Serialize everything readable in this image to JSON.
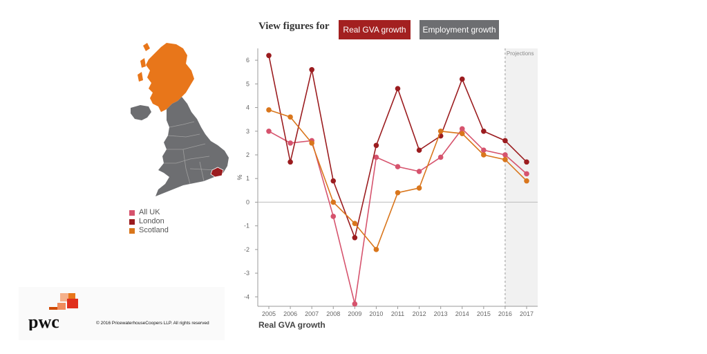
{
  "header": {
    "view_label": "View figures for",
    "tabs": [
      {
        "label": "Real GVA growth",
        "color": "#a32020",
        "selected": true
      },
      {
        "label": "Employment growth",
        "color": "#6d6e71",
        "selected": false
      }
    ]
  },
  "legend": [
    {
      "label": "All UK",
      "color": "#d6536d"
    },
    {
      "label": "London",
      "color": "#9b1c1f"
    },
    {
      "label": "Scotland",
      "color": "#d9761c"
    }
  ],
  "map": {
    "highlight_colors": {
      "scotland": "#e8761a",
      "london": "#9b1c1f",
      "rest": "#6d6e71"
    }
  },
  "footer": {
    "logo_text": "pwc",
    "copyright": "© 2016 PricewaterhouseCoopers LLP. All rights reserved"
  },
  "chart_data": {
    "type": "line",
    "caption": "Real GVA growth",
    "ylabel": "%",
    "projection_label": "Projections",
    "projection_from": 2016,
    "x": [
      2005,
      2006,
      2007,
      2008,
      2009,
      2010,
      2011,
      2012,
      2013,
      2014,
      2015,
      2016,
      2017
    ],
    "y_ticks": [
      -4,
      -3,
      -2,
      -1,
      0,
      1,
      2,
      3,
      4,
      5,
      6
    ],
    "ylim": [
      -4.4,
      6.5
    ],
    "series": [
      {
        "name": "All UK",
        "color": "#d6536d",
        "values": [
          3.0,
          2.5,
          2.6,
          -0.6,
          -4.3,
          1.9,
          1.5,
          1.3,
          1.9,
          3.1,
          2.2,
          2.0,
          1.2
        ]
      },
      {
        "name": "London",
        "color": "#9b1c1f",
        "values": [
          6.2,
          1.7,
          5.6,
          0.9,
          -1.5,
          2.4,
          4.8,
          2.2,
          2.8,
          5.2,
          3.0,
          2.6,
          1.7
        ]
      },
      {
        "name": "Scotland",
        "color": "#d9761c",
        "values": [
          3.9,
          3.6,
          2.5,
          0.0,
          -0.9,
          -2.0,
          0.4,
          0.6,
          3.0,
          2.9,
          2.0,
          1.8,
          0.9
        ]
      }
    ]
  }
}
